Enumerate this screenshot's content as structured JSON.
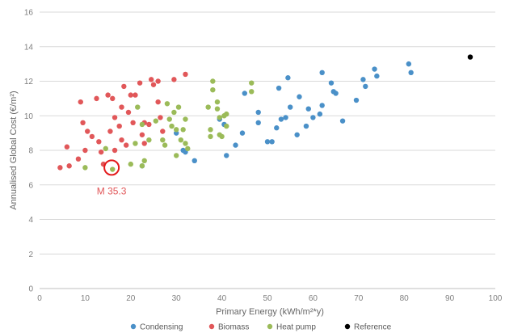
{
  "chart_data": {
    "type": "scatter",
    "title": "",
    "xlabel": "Primary Energy (kWh/m²*y)",
    "ylabel": "Annualised Global Cost (€/m²)",
    "xlim": [
      0,
      100
    ],
    "ylim": [
      0,
      16
    ],
    "xticks": [
      0,
      10,
      20,
      30,
      40,
      50,
      60,
      70,
      80,
      90,
      100
    ],
    "xtick_labels": [
      "0",
      "10",
      "20",
      "30",
      "40",
      "50",
      "60",
      "70",
      "80",
      "90",
      "100"
    ],
    "yticks": [
      0,
      2,
      4,
      6,
      8,
      10,
      12,
      14,
      16
    ],
    "ytick_labels": [
      "0",
      "2",
      "4",
      "6",
      "8",
      "10",
      "12",
      "14",
      "16"
    ],
    "grid": "horizontal",
    "legend_position": "bottom",
    "series": [
      {
        "name": "Condensing",
        "color": "#4a90c8",
        "points": [
          [
            22.5,
            7.1
          ],
          [
            30,
            9
          ],
          [
            31.5,
            8
          ],
          [
            32,
            7.9
          ],
          [
            34,
            7.4
          ],
          [
            39.5,
            9.8
          ],
          [
            40.5,
            9.5
          ],
          [
            41,
            7.7
          ],
          [
            43,
            8.3
          ],
          [
            44.5,
            9
          ],
          [
            45,
            11.3
          ],
          [
            48,
            10.2
          ],
          [
            48,
            9.6
          ],
          [
            50,
            8.5
          ],
          [
            51,
            8.5
          ],
          [
            52,
            9.3
          ],
          [
            52.5,
            11.6
          ],
          [
            53,
            9.8
          ],
          [
            54,
            9.9
          ],
          [
            54.5,
            12.2
          ],
          [
            55,
            10.5
          ],
          [
            56.5,
            8.9
          ],
          [
            57,
            11.1
          ],
          [
            58.5,
            9.4
          ],
          [
            59,
            10.4
          ],
          [
            60,
            9.9
          ],
          [
            61.5,
            10.1
          ],
          [
            62,
            12.5
          ],
          [
            62,
            10.6
          ],
          [
            64,
            11.9
          ],
          [
            64.5,
            11.4
          ],
          [
            65,
            11.3
          ],
          [
            66.5,
            9.7
          ],
          [
            69.5,
            10.9
          ],
          [
            71,
            12.1
          ],
          [
            71.5,
            11.7
          ],
          [
            73.5,
            12.7
          ],
          [
            74,
            12.3
          ],
          [
            81,
            13
          ],
          [
            81.5,
            12.5
          ]
        ]
      },
      {
        "name": "Biomass",
        "color": "#e15759",
        "points": [
          [
            4.5,
            7
          ],
          [
            6,
            8.2
          ],
          [
            6.5,
            7.1
          ],
          [
            8.5,
            7.5
          ],
          [
            9,
            10.8
          ],
          [
            9.5,
            9.6
          ],
          [
            10,
            8
          ],
          [
            10.5,
            9.1
          ],
          [
            11.5,
            8.8
          ],
          [
            12.5,
            11
          ],
          [
            13,
            8.5
          ],
          [
            13.5,
            7.9
          ],
          [
            14,
            7.2
          ],
          [
            15,
            11.2
          ],
          [
            15.5,
            9.1
          ],
          [
            16,
            11
          ],
          [
            16.5,
            9.9
          ],
          [
            16.5,
            8
          ],
          [
            17.5,
            9.4
          ],
          [
            18,
            8.6
          ],
          [
            18,
            10.5
          ],
          [
            18.5,
            11.7
          ],
          [
            19,
            8.3
          ],
          [
            19.5,
            10.2
          ],
          [
            20,
            11.2
          ],
          [
            20.5,
            9.6
          ],
          [
            21,
            11.2
          ],
          [
            22,
            11.9
          ],
          [
            22.5,
            8.9
          ],
          [
            23,
            9.6
          ],
          [
            23,
            8.4
          ],
          [
            24,
            9.5
          ],
          [
            24.5,
            12.1
          ],
          [
            25,
            11.8
          ],
          [
            26,
            12
          ],
          [
            26,
            10.8
          ],
          [
            26.5,
            9.9
          ],
          [
            27,
            9.1
          ],
          [
            29.5,
            12.1
          ],
          [
            32,
            12.4
          ]
        ]
      },
      {
        "name": "Heat pump",
        "color": "#9bbb59",
        "points": [
          [
            10,
            7
          ],
          [
            14.5,
            8.1
          ],
          [
            16,
            6.9
          ],
          [
            20,
            7.2
          ],
          [
            21,
            8.4
          ],
          [
            21.5,
            10.5
          ],
          [
            22.5,
            9.5
          ],
          [
            22.5,
            7.1
          ],
          [
            23,
            7.4
          ],
          [
            24,
            8.6
          ],
          [
            25.5,
            9.7
          ],
          [
            27,
            8.6
          ],
          [
            27.5,
            8.3
          ],
          [
            28,
            10.7
          ],
          [
            28.5,
            9.8
          ],
          [
            29,
            9.4
          ],
          [
            29.5,
            10.2
          ],
          [
            30,
            9.2
          ],
          [
            30,
            7.7
          ],
          [
            30.5,
            10.5
          ],
          [
            31,
            8.6
          ],
          [
            31.5,
            9.2
          ],
          [
            32,
            9.8
          ],
          [
            32,
            8.4
          ],
          [
            32.5,
            8.1
          ],
          [
            37,
            10.5
          ],
          [
            37.5,
            9.2
          ],
          [
            37.5,
            8.8
          ],
          [
            38,
            12
          ],
          [
            38,
            11.5
          ],
          [
            39,
            10.8
          ],
          [
            39,
            10.4
          ],
          [
            39.5,
            9.9
          ],
          [
            39.5,
            8.9
          ],
          [
            40,
            8.8
          ],
          [
            40.5,
            10
          ],
          [
            41,
            10.1
          ],
          [
            41,
            9.4
          ],
          [
            46.5,
            11.9
          ],
          [
            46.5,
            11.4
          ]
        ]
      },
      {
        "name": "Reference",
        "color": "#000000",
        "points": [
          [
            94.5,
            13.4
          ]
        ]
      }
    ],
    "annotations": [
      {
        "text": "M 35.3",
        "x": 15.8,
        "y": 7,
        "color": "#e31a1c"
      }
    ]
  }
}
